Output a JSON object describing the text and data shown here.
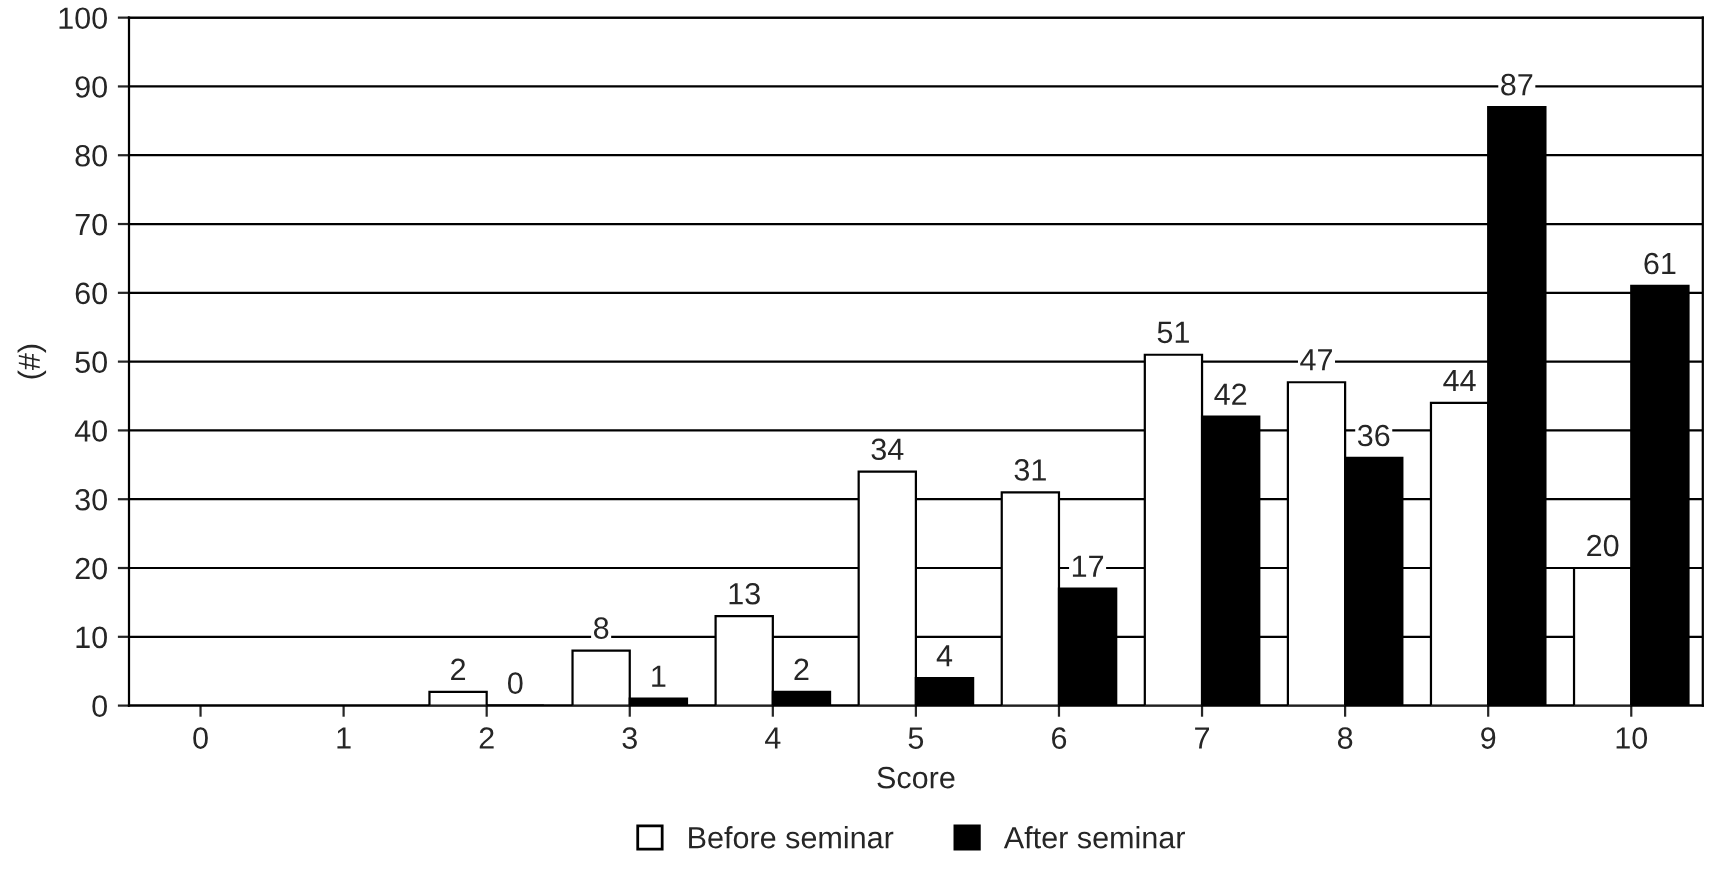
{
  "chart_data": {
    "type": "bar",
    "xlabel": "Score",
    "ylabel": "(#)",
    "categories": [
      "0",
      "1",
      "2",
      "3",
      "4",
      "5",
      "6",
      "7",
      "8",
      "9",
      "10"
    ],
    "series": [
      {
        "name": "Before seminar",
        "color": "#ffffff",
        "values": [
          null,
          null,
          2,
          8,
          13,
          34,
          31,
          51,
          47,
          44,
          20
        ],
        "value_labels": [
          null,
          null,
          "2",
          "8",
          "13",
          "34",
          "31",
          "51",
          "47",
          "44",
          "20"
        ]
      },
      {
        "name": "After seminar",
        "color": "#000000",
        "values": [
          null,
          null,
          0,
          1,
          2,
          4,
          17,
          42,
          36,
          87,
          61
        ],
        "value_labels": [
          null,
          null,
          "0",
          "1",
          "2",
          "4",
          "17",
          "42",
          "36",
          "87",
          "61"
        ]
      }
    ],
    "ylim": [
      0,
      100
    ],
    "yticks": [
      0,
      10,
      20,
      30,
      40,
      50,
      60,
      70,
      80,
      90,
      100
    ],
    "grid": "y",
    "legend": "bottom"
  }
}
